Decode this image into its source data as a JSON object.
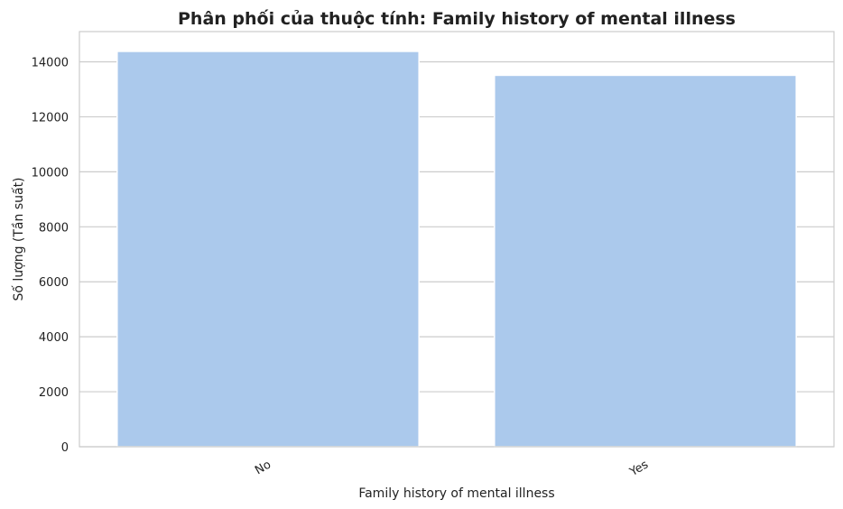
{
  "chart_data": {
    "type": "bar",
    "title": "Phân phối của thuộc tính: Family history of mental illness",
    "xlabel": "Family history of mental illness",
    "ylabel": "Số lượng (Tần suất)",
    "categories": [
      "No",
      "Yes"
    ],
    "values": [
      14380,
      13510
    ],
    "ylim": [
      0,
      15100
    ],
    "yticks": [
      0,
      2000,
      4000,
      6000,
      8000,
      10000,
      12000,
      14000
    ],
    "grid": "horizontal",
    "bar_color": "#abc9ec",
    "grid_color": "#cccccc"
  }
}
